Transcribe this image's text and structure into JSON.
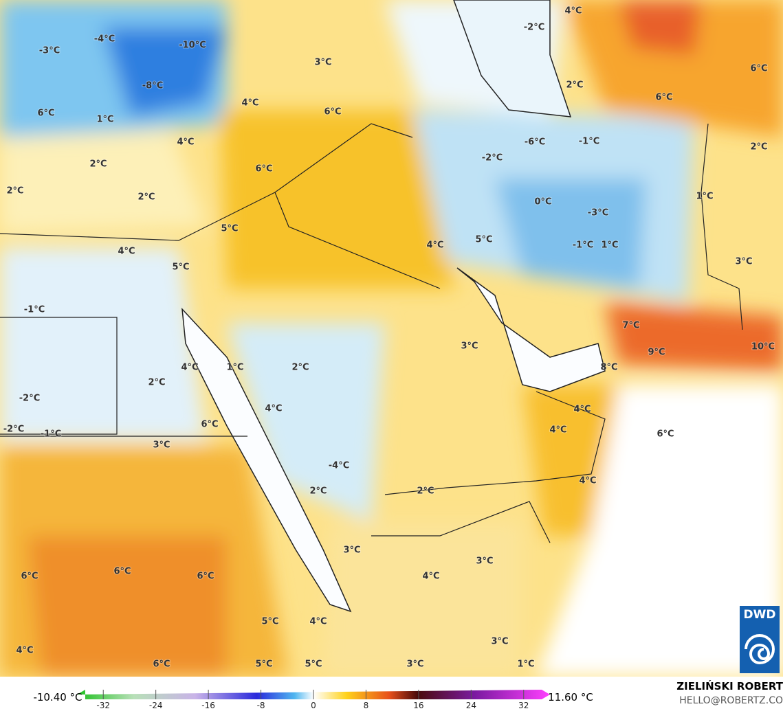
{
  "map": {
    "labels": [
      "-10°C",
      "-4°C",
      "-3°C",
      "-8°C",
      "3°C",
      "4°C",
      "6°C",
      "1°C",
      "6°C",
      "4°C",
      "2°C",
      "6°C",
      "2°C",
      "2°C",
      "5°C",
      "4°C",
      "5°C",
      "4°C",
      "5°C",
      "-1°C",
      "4°C",
      "1°C",
      "2°C",
      "2°C",
      "-2°C",
      "4°C",
      "-2°C",
      "-1°C",
      "6°C",
      "3°C",
      "-4°C",
      "2°C",
      "2°C",
      "3°C",
      "4°C",
      "4°C",
      "6°C",
      "4°C",
      "7°C",
      "9°C",
      "10°C",
      "8°C",
      "3°C",
      "1°C",
      "-1°C",
      "1°C",
      "-3°C",
      "0°C",
      "-2°C",
      "-6°C",
      "-1°C",
      "2°C",
      "6°C",
      "6°C",
      "2°C",
      "-2°C",
      "4°C",
      "3°C",
      "3°C",
      "4°C",
      "6°C",
      "6°C",
      "6°C",
      "5°C",
      "4°C",
      "4°C",
      "6°C",
      "5°C",
      "5°C",
      "3°C",
      "3°C",
      "1°C"
    ]
  },
  "colorbar": {
    "min_label": "-10.40 °C",
    "max_label": "11.60 °C",
    "range": [
      -36,
      36
    ],
    "ticks": [
      -32,
      -24,
      -16,
      -8,
      0,
      8,
      16,
      24,
      32
    ]
  },
  "credit": {
    "author": "ZIELIŃSKI ROBERT",
    "email": "HELLO@ROBERTZ.CO",
    "logo": "DWD"
  }
}
